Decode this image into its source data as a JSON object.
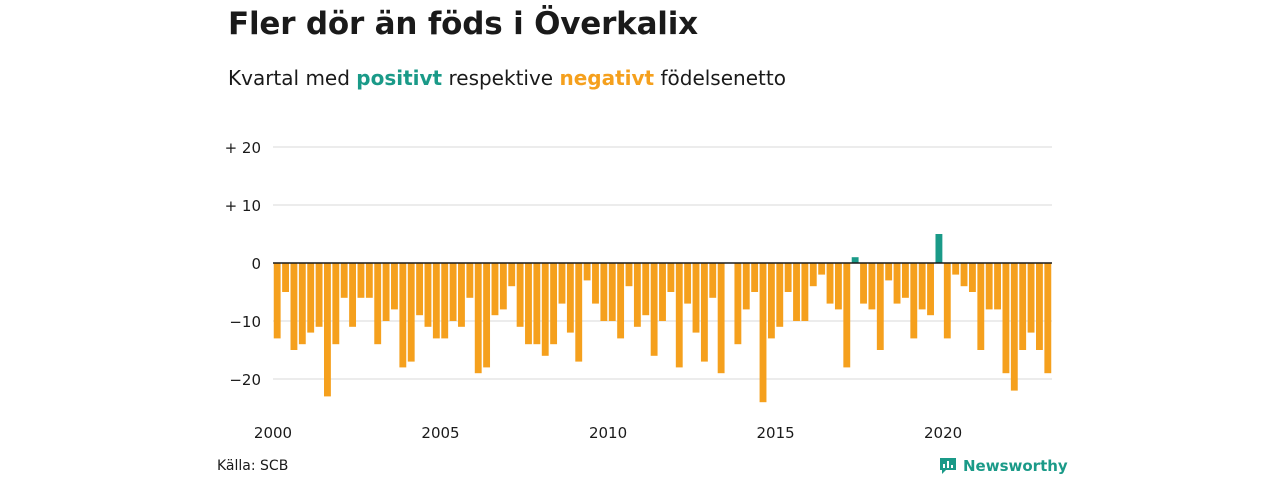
{
  "title": "Fler dör än föds i Överkalix",
  "subtitle": {
    "prefix": "Kvartal med ",
    "positive": "positivt",
    "middle": " respektive ",
    "negative": "negativt",
    "suffix": " födelsenetto"
  },
  "source": "Källa: SCB",
  "logo": {
    "name": "Newsworthy"
  },
  "colors": {
    "positive": "#1a9a88",
    "negative": "#f5a01d",
    "grid": "#d9d9d9",
    "zero": "#1a1a1a"
  },
  "chart_data": {
    "type": "bar",
    "x_start": "2000 Q1",
    "x_tick_labels": [
      "2000",
      "2005",
      "2010",
      "2015",
      "2020"
    ],
    "y_tick_labels": [
      "+ 20",
      "+ 10",
      "0",
      "−10",
      "−20"
    ],
    "y_tick_values": [
      20,
      10,
      0,
      -10,
      -20
    ],
    "ylim": [
      -25,
      22
    ],
    "values": [
      -13,
      -5,
      -15,
      -14,
      -12,
      -11,
      -23,
      -14,
      -6,
      -11,
      -6,
      -6,
      -14,
      -10,
      -8,
      -18,
      -17,
      -9,
      -11,
      -13,
      -13,
      -10,
      -11,
      -6,
      -19,
      -18,
      -9,
      -8,
      -4,
      -11,
      -14,
      -14,
      -16,
      -14,
      -7,
      -12,
      -17,
      -3,
      -7,
      -10,
      -10,
      -13,
      -4,
      -11,
      -9,
      -16,
      -10,
      -5,
      -18,
      -7,
      -12,
      -17,
      -6,
      -19,
      0,
      -14,
      -8,
      -5,
      -24,
      -13,
      -11,
      -5,
      -10,
      -10,
      -4,
      -2,
      -7,
      -8,
      -18,
      1,
      -7,
      -8,
      -15,
      -3,
      -7,
      -6,
      -13,
      -8,
      -9,
      5,
      -13,
      -2,
      -4,
      -5,
      -15,
      -8,
      -8,
      -19,
      -22,
      -15,
      -12,
      -15,
      -19
    ]
  }
}
